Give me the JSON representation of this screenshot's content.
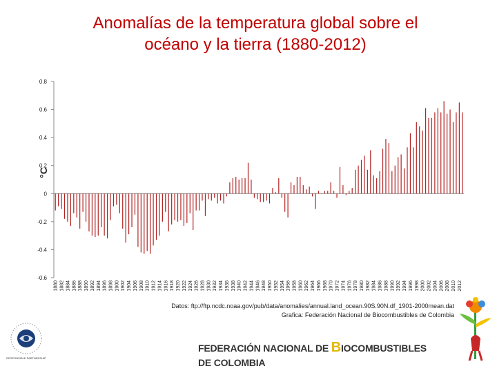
{
  "title": {
    "line1": "Anomalías de la temperatura global sobre el",
    "line2": "océano y la tierra (1880-2012)"
  },
  "source": {
    "line1": "Datos: ftp://ftp.ncdc.noaa.gov/pub/data/anomalies/annual.land_ocean.90S.90N.df_1901-2000mean.dat",
    "line2": "Grafica: Federación Nacional de Biocombustibles de Colombia"
  },
  "footer": {
    "org_part1": "FEDERACIÓN NACIONAL DE ",
    "org_initial": "B",
    "org_part2": "IOCOMBUSTIBLES",
    "org_line2": "DE COLOMBIA"
  },
  "logo_left": {
    "text": "RESPONSIBLE PARTNERSHIP"
  },
  "colors": {
    "title": "#c00000",
    "bars": "#b22222",
    "logo_blue": "#1c3f7a"
  },
  "chart_data": {
    "type": "bar",
    "ylabel": "°C",
    "ylim": [
      -0.6,
      0.8
    ],
    "yticks": [
      -0.6,
      -0.4,
      -0.2,
      0,
      0.2,
      0.4,
      0.6,
      0.8
    ],
    "ytick_labels": [
      "-0.6",
      "-0.4",
      "-0.2",
      "0",
      "0.2",
      "0.4",
      "0.6",
      "0.8"
    ],
    "x_start": 1880,
    "x_label_step": 2,
    "x_labels": [
      "1880",
      "1882",
      "1884",
      "1886",
      "1888",
      "1890",
      "1892",
      "1894",
      "1896",
      "1898",
      "1900",
      "1902",
      "1904",
      "1906",
      "1908",
      "1910",
      "1912",
      "1914",
      "1916",
      "1918",
      "1920",
      "1922",
      "1924",
      "1926",
      "1928",
      "1930",
      "1932",
      "1934",
      "1936",
      "1938",
      "1940",
      "1942",
      "1944",
      "1946",
      "1948",
      "1950",
      "1952",
      "1954",
      "1956",
      "1958",
      "1960",
      "1962",
      "1964",
      "1966",
      "1968",
      "1970",
      "1972",
      "1974",
      "1976",
      "1978",
      "1980",
      "1982",
      "1984",
      "1986",
      "1988",
      "1990",
      "1992",
      "1994",
      "1996",
      "1998",
      "2000",
      "2002",
      "2004",
      "2006",
      "2008",
      "2010",
      "2012"
    ],
    "values": [
      -0.12,
      -0.09,
      -0.11,
      -0.18,
      -0.2,
      -0.23,
      -0.14,
      -0.17,
      -0.25,
      -0.13,
      -0.2,
      -0.27,
      -0.3,
      -0.31,
      -0.3,
      -0.24,
      -0.3,
      -0.32,
      -0.19,
      -0.09,
      -0.08,
      -0.14,
      -0.25,
      -0.35,
      -0.29,
      -0.24,
      -0.15,
      -0.38,
      -0.42,
      -0.43,
      -0.41,
      -0.43,
      -0.37,
      -0.33,
      -0.3,
      -0.2,
      -0.13,
      -0.27,
      -0.22,
      -0.19,
      -0.2,
      -0.19,
      -0.23,
      -0.21,
      -0.14,
      -0.26,
      -0.12,
      -0.12,
      -0.05,
      -0.16,
      -0.04,
      -0.05,
      -0.03,
      -0.07,
      -0.05,
      -0.07,
      -0.02,
      0.08,
      0.11,
      0.12,
      0.1,
      0.11,
      0.11,
      0.22,
      0.1,
      -0.03,
      -0.04,
      -0.06,
      -0.06,
      -0.05,
      -0.07,
      0.04,
      0.01,
      0.11,
      -0.03,
      -0.13,
      -0.17,
      0.08,
      0.06,
      0.12,
      0.12,
      0.06,
      0.03,
      0.05,
      -0.02,
      -0.11,
      0.02,
      0.0,
      0.02,
      0.02,
      0.08,
      0.02,
      -0.03,
      0.19,
      0.06,
      -0.01,
      0.02,
      0.04,
      0.17,
      0.2,
      0.24,
      0.27,
      0.17,
      0.31,
      0.13,
      0.11,
      0.16,
      0.32,
      0.39,
      0.36,
      0.16,
      0.2,
      0.26,
      0.28,
      0.18,
      0.33,
      0.43,
      0.33,
      0.51,
      0.48,
      0.45,
      0.61,
      0.54,
      0.54,
      0.58,
      0.61,
      0.58,
      0.66,
      0.57,
      0.6,
      0.51,
      0.58,
      0.65,
      0.58
    ]
  }
}
